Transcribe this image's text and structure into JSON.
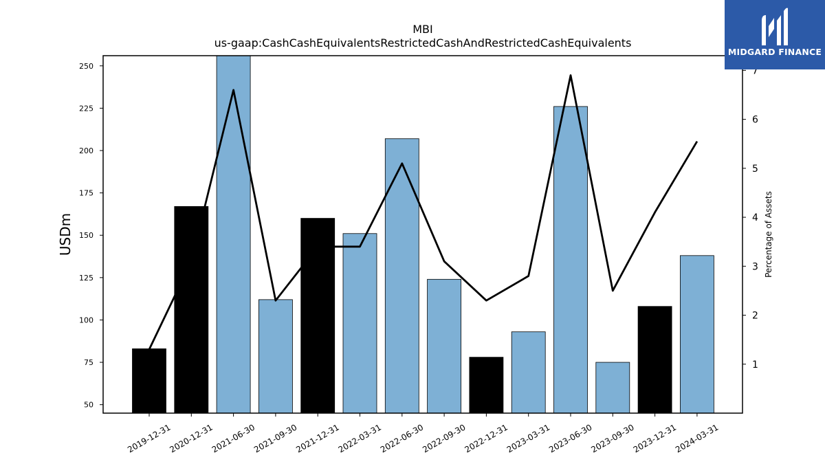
{
  "chart_data": {
    "type": "bar",
    "title": "MBI",
    "subtitle": "us-gaap:CashCashEquivalentsRestrictedCashAndRestrictedCashEquivalents",
    "ylabel": "USDm",
    "y2label": "Percentage of Assets",
    "ylim": [
      45,
      256
    ],
    "y2lim": [
      0,
      7.3
    ],
    "yticks": [
      50,
      75,
      100,
      125,
      150,
      175,
      200,
      225,
      250
    ],
    "y2ticks": [
      1,
      2,
      3,
      4,
      5,
      6,
      7
    ],
    "categories": [
      "2019-12-31",
      "2020-12-31",
      "2021-06-30",
      "2021-09-30",
      "2021-12-31",
      "2022-03-31",
      "2022-06-30",
      "2022-09-30",
      "2022-12-31",
      "2023-03-31",
      "2023-06-30",
      "2023-09-30",
      "2023-12-31",
      "2024-03-31"
    ],
    "series": [
      {
        "type": "bar",
        "values": [
          83,
          167,
          257,
          112,
          160,
          151,
          207,
          124,
          78,
          93,
          226,
          75,
          108,
          138
        ],
        "colors": [
          "#000000",
          "#000000",
          "#7eb0d5",
          "#7eb0d5",
          "#000000",
          "#7eb0d5",
          "#7eb0d5",
          "#7eb0d5",
          "#000000",
          "#7eb0d5",
          "#7eb0d5",
          "#7eb0d5",
          "#000000",
          "#7eb0d5"
        ]
      },
      {
        "type": "line",
        "axis": "right",
        "color": "#000000",
        "values": [
          1.3,
          3.1,
          6.6,
          2.3,
          3.4,
          3.4,
          5.1,
          3.1,
          2.3,
          2.8,
          6.9,
          2.5,
          4.1,
          5.55
        ]
      }
    ],
    "grid": false
  },
  "logo": {
    "text": "MIDGARD FINANCE",
    "background": "#2c5aa8"
  }
}
